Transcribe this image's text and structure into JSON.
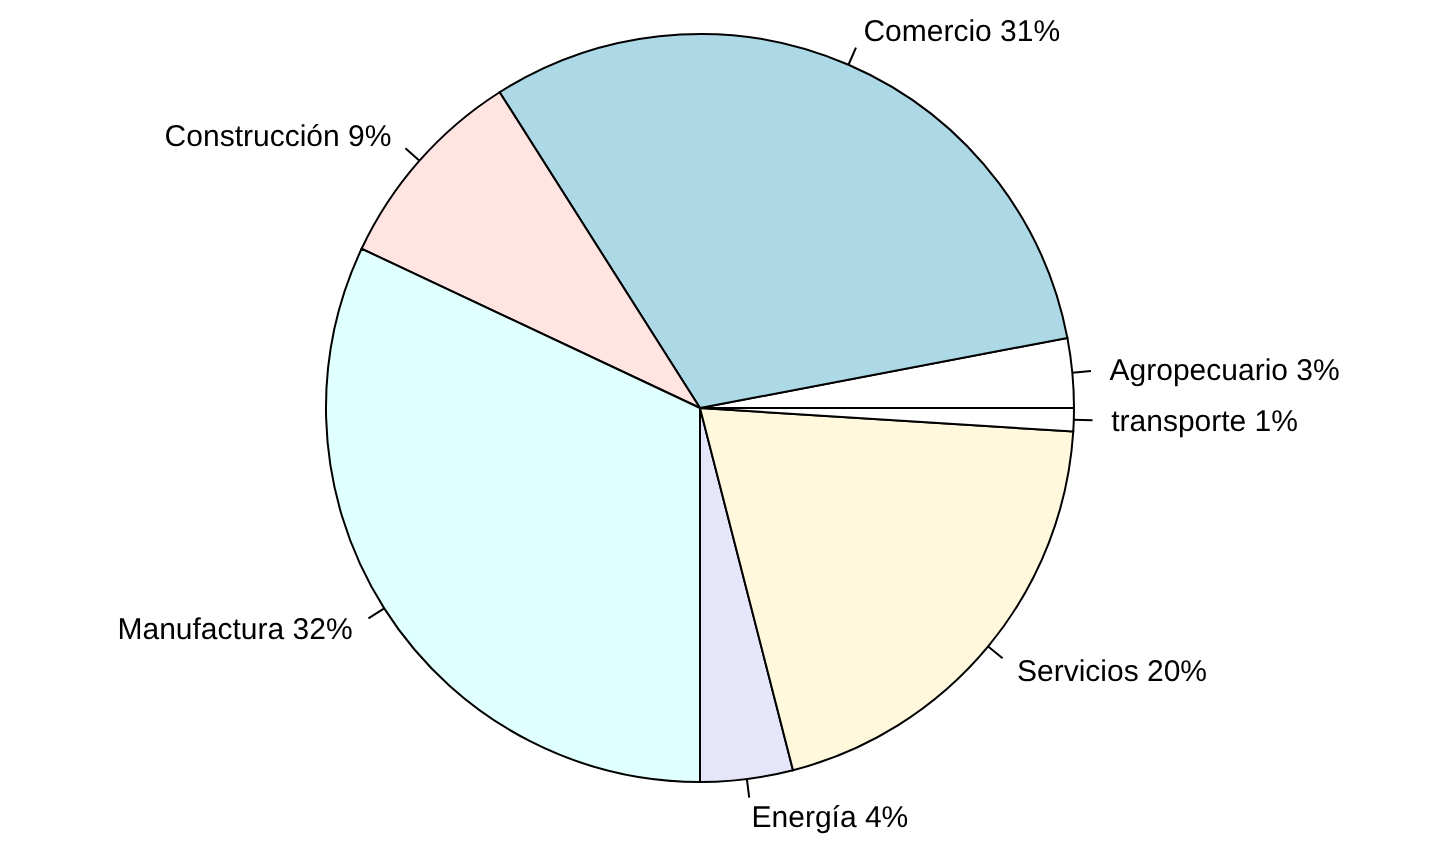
{
  "chart_data": {
    "type": "pie",
    "categories": [
      "Agropecuario",
      "Comercio",
      "Construcción",
      "Manufactura",
      "Energía",
      "Servicios",
      "transporte"
    ],
    "values": [
      3,
      31,
      9,
      32,
      4,
      20,
      1
    ],
    "value_labels": [
      "3%",
      "31%",
      "9%",
      "32%",
      "4%",
      "20%",
      "1%"
    ],
    "colors": [
      "#ffffff",
      "#add8e6",
      "#ffe4e1",
      "#e0ffff",
      "#e6e6fa",
      "#fff8dc",
      "#ffffff"
    ]
  }
}
